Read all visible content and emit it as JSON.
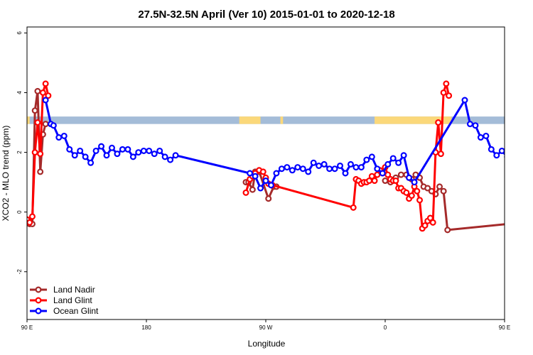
{
  "chart_data": {
    "type": "line",
    "title": "27.5N-32.5N April (Ver 10)   2015-01-01 to 2020-12-18",
    "xlabel": "Longitude",
    "ylabel": "XCO2 - MLO trend (ppm)",
    "xlim": [
      90,
      450
    ],
    "ylim": [
      -3.6,
      6.2
    ],
    "x_ticks": [
      {
        "value": 90,
        "label": "90 E"
      },
      {
        "value": 180,
        "label": "180"
      },
      {
        "value": 270,
        "label": "90 W"
      },
      {
        "value": 360,
        "label": "0"
      },
      {
        "value": 450,
        "label": "90 E"
      }
    ],
    "y_ticks": [
      {
        "value": -2,
        "label": "-2"
      },
      {
        "value": 0,
        "label": "0"
      },
      {
        "value": 2,
        "label": "2"
      },
      {
        "value": 4,
        "label": "4"
      },
      {
        "value": 6,
        "label": "6"
      }
    ],
    "grid": false,
    "legend_position": "bottom-left",
    "map_strip": {
      "y_range": [
        2.95,
        3.2
      ],
      "ocean_color": "#a4bcd8",
      "land_color": "#fbd87a",
      "land_segments": [
        [
          90,
          92
        ],
        [
          250,
          266
        ],
        [
          281,
          283
        ],
        [
          352,
          410
        ],
        [
          450,
          452
        ]
      ]
    },
    "series": [
      {
        "name": "Land Nadir",
        "color": "#a52a2a",
        "x": [
          92,
          94,
          96,
          98,
          100,
          102,
          104,
          106,
          255,
          257,
          260,
          262,
          265,
          272,
          276,
          278,
          332,
          336,
          338,
          340,
          342,
          344,
          346,
          348,
          352,
          356,
          360,
          364,
          368,
          372,
          376,
          378,
          380,
          383,
          386,
          389,
          392,
          395,
          398,
          401,
          404,
          407,
          452,
          454,
          456,
          458,
          460,
          462,
          464,
          466
        ],
        "y": [
          -0.4,
          -0.4,
          3.4,
          4.05,
          1.35,
          2.6,
          2.95,
          null,
          1.0,
          1.0,
          0.75,
          1.35,
          1.35,
          0.45,
          0.85,
          0.85,
          null,
          null,
          null,
          null,
          null,
          null,
          null,
          null,
          null,
          null,
          1.05,
          1.0,
          1.15,
          1.25,
          1.25,
          1.15,
          1.1,
          1.25,
          1.15,
          0.85,
          0.8,
          0.7,
          0.6,
          0.85,
          0.7,
          -0.6,
          -0.4,
          3.4,
          4.05,
          1.35,
          2.6,
          2.95,
          null,
          null
        ]
      },
      {
        "name": "Land Glint",
        "color": "#ff0000",
        "x": [
          90,
          92,
          94,
          96,
          98,
          100,
          102,
          104,
          106,
          110,
          115,
          255,
          258,
          260,
          262,
          265,
          268,
          270,
          272,
          275,
          336,
          338,
          340,
          342,
          344,
          346,
          348,
          350,
          352,
          354,
          356,
          358,
          360,
          362,
          364,
          366,
          368,
          370,
          372,
          374,
          376,
          378,
          380,
          382,
          384,
          386,
          388,
          390,
          392,
          394,
          396,
          398,
          400,
          402,
          404,
          406,
          408,
          410,
          412,
          414,
          416,
          418,
          420,
          422,
          424,
          426,
          428
        ],
        "y": [
          -0.25,
          -0.35,
          -0.15,
          2.0,
          3.0,
          1.95,
          4.0,
          4.3,
          3.9,
          null,
          null,
          0.65,
          1.1,
          1.2,
          1.3,
          1.4,
          1.35,
          1.15,
          0.95,
          0.9,
          0.15,
          1.1,
          1.05,
          0.95,
          1.0,
          1.0,
          1.05,
          1.2,
          1.05,
          1.25,
          1.4,
          1.3,
          1.5,
          1.25,
          1.1,
          1.05,
          1.05,
          0.8,
          0.8,
          0.7,
          0.65,
          0.45,
          0.55,
          0.85,
          0.7,
          0.4,
          -0.55,
          -0.45,
          -0.3,
          -0.2,
          -0.35,
          2.0,
          3.0,
          1.95,
          4.0,
          4.3,
          3.9,
          null,
          null,
          null,
          null,
          null,
          null,
          null,
          null,
          null,
          null
        ]
      },
      {
        "name": "Ocean Glint",
        "color": "#0000ff",
        "x": [
          104,
          108,
          110,
          114,
          118,
          122,
          126,
          130,
          134,
          138,
          142,
          146,
          150,
          154,
          158,
          162,
          166,
          170,
          174,
          178,
          182,
          186,
          190,
          194,
          198,
          202,
          258,
          262,
          266,
          270,
          274,
          278,
          282,
          286,
          290,
          294,
          298,
          302,
          306,
          310,
          314,
          318,
          322,
          326,
          330,
          334,
          338,
          342,
          346,
          350,
          354,
          358,
          362,
          366,
          370,
          374,
          378,
          382,
          420,
          424,
          428,
          432,
          436,
          440,
          444,
          448,
          452,
          456,
          460
        ],
        "y": [
          3.75,
          2.95,
          2.9,
          2.5,
          2.55,
          2.1,
          1.9,
          2.05,
          1.85,
          1.65,
          2.05,
          2.2,
          1.9,
          2.15,
          1.95,
          2.1,
          2.1,
          1.85,
          2.0,
          2.05,
          2.05,
          1.95,
          2.05,
          1.85,
          1.75,
          1.9,
          1.3,
          1.2,
          0.8,
          1.05,
          0.9,
          1.3,
          1.45,
          1.5,
          1.4,
          1.5,
          1.45,
          1.35,
          1.65,
          1.55,
          1.6,
          1.45,
          1.45,
          1.55,
          1.3,
          1.6,
          1.5,
          1.5,
          1.75,
          1.85,
          1.45,
          1.3,
          1.6,
          1.8,
          1.65,
          1.9,
          1.15,
          1.0,
          3.75,
          2.95,
          2.9,
          2.5,
          2.55,
          2.1,
          1.9,
          2.05,
          1.85,
          1.65,
          2.05
        ]
      }
    ]
  }
}
